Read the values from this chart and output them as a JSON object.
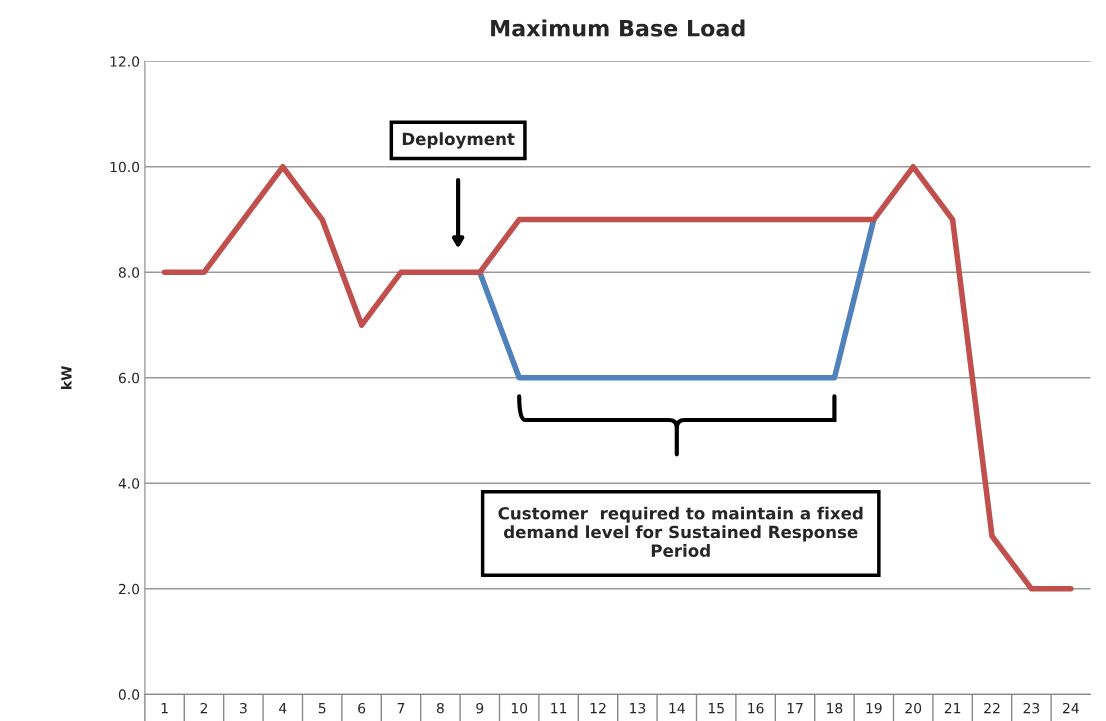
{
  "chart_data": {
    "type": "line",
    "title": "Maximum Base Load",
    "ylabel": "kW",
    "categories": [
      "1",
      "2",
      "3",
      "4",
      "5",
      "6",
      "7",
      "8",
      "9",
      "10",
      "11",
      "12",
      "13",
      "14",
      "15",
      "16",
      "17",
      "18",
      "19",
      "20",
      "21",
      "22",
      "23",
      "24"
    ],
    "series": [
      {
        "color": "#4f81bd",
        "values": [
          null,
          null,
          null,
          null,
          null,
          null,
          null,
          null,
          8,
          6,
          6,
          6,
          6,
          6,
          6,
          6,
          6,
          6,
          9,
          null,
          null,
          null,
          null,
          null
        ]
      },
      {
        "color": "#c0504d",
        "values": [
          8,
          8,
          9,
          10,
          9,
          7,
          8,
          8,
          8,
          9,
          9,
          9,
          9,
          9,
          9,
          9,
          9,
          9,
          9,
          10,
          9,
          3,
          2,
          2
        ]
      }
    ],
    "ylim": [
      0,
      12
    ],
    "yticks": [
      {
        "value": 0,
        "label": "0.0"
      },
      {
        "value": 2,
        "label": "2.0"
      },
      {
        "value": 4,
        "label": "4.0"
      },
      {
        "value": 6,
        "label": "6.0"
      },
      {
        "value": 8,
        "label": "8.0"
      },
      {
        "value": 10,
        "label": "10.0"
      },
      {
        "value": 12,
        "label": "12.0"
      }
    ],
    "grid": "y",
    "marker": "none",
    "line_style": "solid",
    "legend": false,
    "annotations": [
      "Deployment",
      "Customer  required to maintain a fixed\ndemand level for Sustained Response\nPeriod"
    ]
  }
}
